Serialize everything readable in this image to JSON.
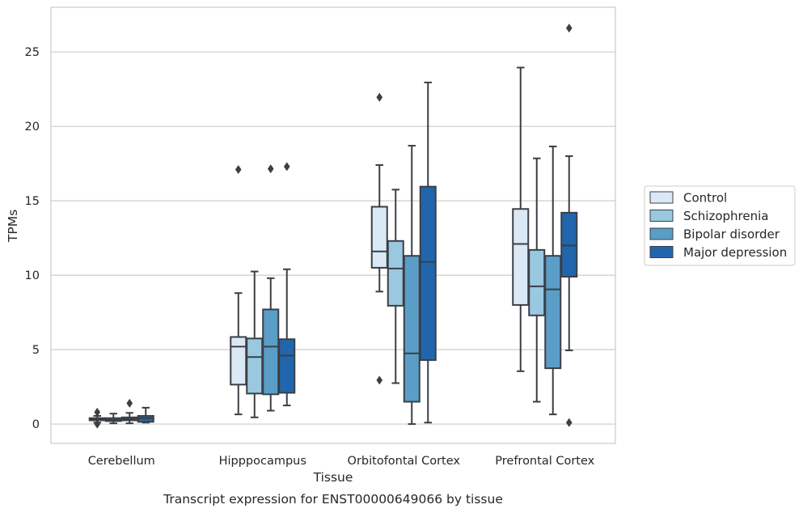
{
  "chart_data": {
    "type": "box",
    "title": "",
    "caption": "Transcript expression for ENST00000649066 by tissue",
    "xlabel": "Tissue",
    "ylabel": "TPMs",
    "ylim": [
      -1.3,
      28
    ],
    "yticks": [
      0,
      5,
      10,
      15,
      20,
      25
    ],
    "grid": "horizontal",
    "legend_position": "outside-right",
    "categories": [
      "Cerebellum",
      "Hipppocampus",
      "Orbitofontal Cortex",
      "Prefrontal Cortex"
    ],
    "series": [
      {
        "name": "Control",
        "color": "#dbe9f6",
        "boxes": [
          {
            "whisker_low": 0.1,
            "q1": 0.25,
            "median": 0.35,
            "q3": 0.4,
            "whisker_high": 0.55,
            "outliers": [
              0.8,
              0.0
            ]
          },
          {
            "whisker_low": 0.65,
            "q1": 2.65,
            "median": 5.2,
            "q3": 5.85,
            "whisker_high": 8.8,
            "outliers": [
              17.1
            ]
          },
          {
            "whisker_low": 8.9,
            "q1": 10.5,
            "median": 11.6,
            "q3": 14.6,
            "whisker_high": 17.4,
            "outliers": [
              21.95,
              2.95
            ]
          },
          {
            "whisker_low": 3.55,
            "q1": 8.0,
            "median": 12.1,
            "q3": 14.45,
            "whisker_high": 23.95,
            "outliers": []
          }
        ]
      },
      {
        "name": "Schizophrenia",
        "color": "#9ac8e0",
        "boxes": [
          {
            "whisker_low": 0.05,
            "q1": 0.2,
            "median": 0.3,
            "q3": 0.4,
            "whisker_high": 0.7,
            "outliers": []
          },
          {
            "whisker_low": 0.45,
            "q1": 2.05,
            "median": 4.5,
            "q3": 5.75,
            "whisker_high": 10.25,
            "outliers": []
          },
          {
            "whisker_low": 2.75,
            "q1": 7.95,
            "median": 10.45,
            "q3": 12.3,
            "whisker_high": 15.75,
            "outliers": []
          },
          {
            "whisker_low": 1.5,
            "q1": 7.3,
            "median": 9.25,
            "q3": 11.7,
            "whisker_high": 17.85,
            "outliers": []
          }
        ]
      },
      {
        "name": "Bipolar disorder",
        "color": "#5a9ec8",
        "boxes": [
          {
            "whisker_low": 0.05,
            "q1": 0.25,
            "median": 0.35,
            "q3": 0.45,
            "whisker_high": 0.75,
            "outliers": [
              1.4
            ]
          },
          {
            "whisker_low": 0.9,
            "q1": 2.0,
            "median": 5.2,
            "q3": 7.7,
            "whisker_high": 9.8,
            "outliers": [
              17.15
            ]
          },
          {
            "whisker_low": 0.0,
            "q1": 1.5,
            "median": 4.75,
            "q3": 11.3,
            "whisker_high": 18.7,
            "outliers": []
          },
          {
            "whisker_low": 0.65,
            "q1": 3.75,
            "median": 9.05,
            "q3": 11.3,
            "whisker_high": 18.65,
            "outliers": []
          }
        ]
      },
      {
        "name": "Major depression",
        "color": "#2166ac",
        "boxes": [
          {
            "whisker_low": 0.1,
            "q1": 0.15,
            "median": 0.4,
            "q3": 0.55,
            "whisker_high": 1.1,
            "outliers": []
          },
          {
            "whisker_low": 1.25,
            "q1": 2.1,
            "median": 4.6,
            "q3": 5.7,
            "whisker_high": 10.4,
            "outliers": [
              17.3
            ]
          },
          {
            "whisker_low": 0.1,
            "q1": 4.3,
            "median": 10.9,
            "q3": 15.95,
            "whisker_high": 22.95,
            "outliers": []
          },
          {
            "whisker_low": 4.95,
            "q1": 9.9,
            "median": 12.0,
            "q3": 14.2,
            "whisker_high": 18.0,
            "outliers": [
              26.6,
              0.1
            ]
          }
        ]
      }
    ]
  }
}
